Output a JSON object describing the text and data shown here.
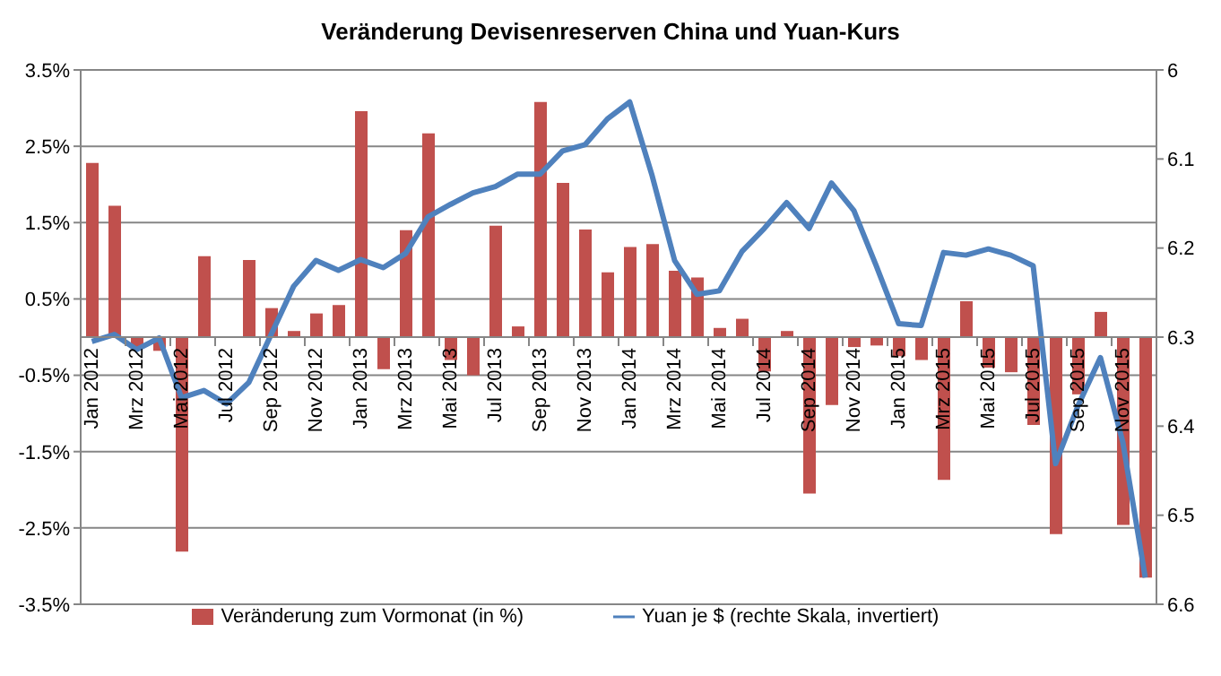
{
  "chart_data": {
    "type": "bar",
    "title": "Veränderung Devisenreserven China und Yuan-Kurs",
    "categories": [
      "Jan 2012",
      null,
      "Mrz 2012",
      null,
      "Mai 2012",
      null,
      "Jul 2012",
      null,
      "Sep 2012",
      null,
      "Nov 2012",
      null,
      "Jan 2013",
      null,
      "Mrz 2013",
      null,
      "Mai 2013",
      null,
      "Jul 2013",
      null,
      "Sep 2013",
      null,
      "Nov 2013",
      null,
      "Jan 2014",
      null,
      "Mrz 2014",
      null,
      "Mai 2014",
      null,
      "Jul 2014",
      null,
      "Sep 2014",
      null,
      "Nov 2014",
      null,
      "Jan 2015",
      null,
      "Mrz 2015",
      null,
      "Mai 2015",
      null,
      "Jul 2015",
      null,
      "Sep 2015",
      null,
      "Nov 2015",
      null
    ],
    "series": [
      {
        "name": "Veränderung zum Vormonat (in %)",
        "color": "#c0504d",
        "values": [
          2.28,
          1.72,
          -0.13,
          -0.18,
          -2.81,
          1.06,
          0,
          1.01,
          0.38,
          0.08,
          0.31,
          0.42,
          2.96,
          -0.42,
          1.4,
          2.67,
          -0.3,
          -0.5,
          1.46,
          0.14,
          3.08,
          2.02,
          1.41,
          0.85,
          1.18,
          1.22,
          0.87,
          0.78,
          0.12,
          0.24,
          -0.45,
          0.08,
          -2.05,
          -0.89,
          -0.13,
          -0.11,
          -0.25,
          -0.3,
          -1.87,
          0.47,
          -0.4,
          -0.46,
          -1.15,
          -2.58,
          -0.75,
          0.33,
          -2.46,
          -3.15
        ]
      },
      {
        "type": "line",
        "axis": "y2",
        "name": "Yuan je $ (rechte Skala, invertiert)",
        "color": "#4f81bd",
        "values": [
          6.305,
          6.297,
          6.314,
          6.301,
          6.368,
          6.36,
          6.375,
          6.351,
          6.297,
          6.243,
          6.214,
          6.225,
          6.213,
          6.222,
          6.206,
          6.165,
          6.151,
          6.138,
          6.131,
          6.117,
          6.117,
          6.091,
          6.084,
          6.055,
          6.036,
          6.119,
          6.214,
          6.252,
          6.248,
          6.204,
          6.178,
          6.149,
          6.178,
          6.127,
          6.158,
          6.22,
          6.285,
          6.287,
          6.205,
          6.208,
          6.201,
          6.208,
          6.22,
          6.442,
          6.377,
          6.323,
          6.418,
          6.57
        ]
      }
    ],
    "ylim": [
      -3.5,
      3.5
    ],
    "yticks": [
      {
        "value": -3.5,
        "label": "-3.5%"
      },
      {
        "value": -2.5,
        "label": "-2.5%"
      },
      {
        "value": -1.5,
        "label": "-1.5%"
      },
      {
        "value": -0.5,
        "label": "-0.5%"
      },
      {
        "value": 0.5,
        "label": "0.5%"
      },
      {
        "value": 1.5,
        "label": "1.5%"
      },
      {
        "value": 2.5,
        "label": "2.5%"
      },
      {
        "value": 3.5,
        "label": "3.5%"
      }
    ],
    "y2lim": [
      6.6,
      6
    ],
    "y2ticks": [
      6,
      6.1,
      6.2,
      6.3,
      6.4,
      6.5,
      6.6
    ],
    "grid": "y",
    "legend": "bottom"
  }
}
